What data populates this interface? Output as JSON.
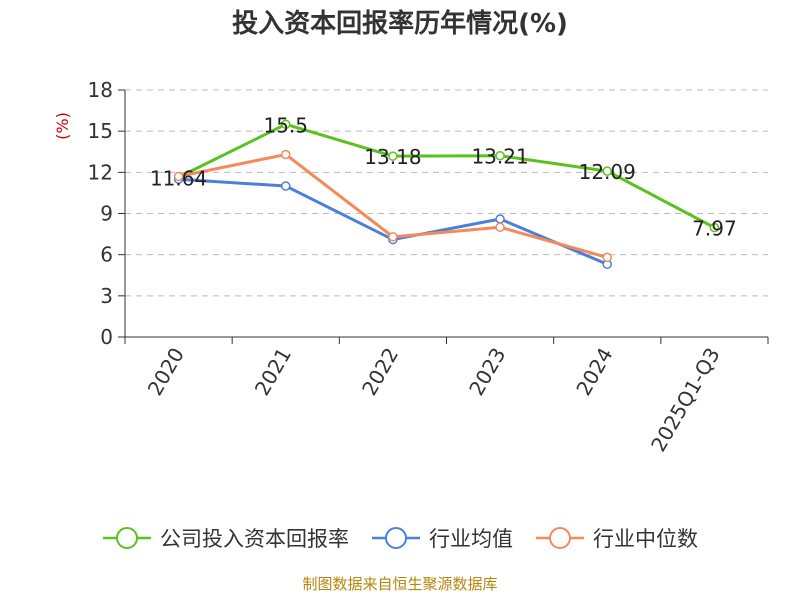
{
  "source_note": "制图数据来自恒生聚源数据库",
  "colors": {
    "unit": "#cc0000",
    "source_note": "#b8860b",
    "axis": "#333333",
    "grid": "#bbbbbb"
  },
  "chart_data": {
    "type": "line",
    "title": "投入资本回报率历年情况(%)",
    "ylabel": "(%)",
    "xlabel": "",
    "categories": [
      "2020",
      "2021",
      "2022",
      "2023",
      "2024",
      "2025Q1-Q3"
    ],
    "ylim": [
      0,
      18
    ],
    "yticks": [
      0,
      3,
      6,
      9,
      12,
      15,
      18
    ],
    "grid": "horizontal-dashed",
    "legend_position": "bottom",
    "series": [
      {
        "name": "公司投入资本回报率",
        "color": "#5ac21f",
        "values": [
          11.64,
          15.5,
          13.18,
          13.21,
          12.09,
          7.97
        ],
        "labels": [
          "11.64",
          "15.5",
          "13.18",
          "13.21",
          "12.09",
          "7.97"
        ],
        "show_labels": true
      },
      {
        "name": "行业均值",
        "color": "#4a7fdc",
        "values": [
          11.5,
          11.0,
          7.1,
          8.6,
          5.3,
          null
        ],
        "show_labels": false
      },
      {
        "name": "行业中位数",
        "color": "#f5895a",
        "values": [
          11.7,
          13.3,
          7.3,
          8.0,
          5.8,
          null
        ],
        "show_labels": false
      }
    ]
  }
}
